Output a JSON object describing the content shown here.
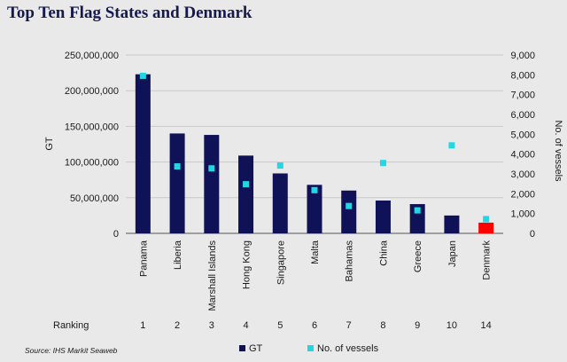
{
  "title": "Top Ten Flag States and Denmark",
  "source": "Source: IHS Markit Seaweb",
  "ranking_label": "Ranking",
  "colors": {
    "bar": "#0f1257",
    "highlight_bar": "#ff0000",
    "marker": "#22d6e4",
    "grid": "#c9c9cc",
    "text": "#1a1a1a"
  },
  "chart_data": {
    "type": "bar",
    "categories": [
      "Panama",
      "Liberia",
      "Marshall Islands",
      "Hong Kong",
      "Singapore",
      "Malta",
      "Bahamas",
      "China",
      "Greece",
      "Japan",
      "Denmark"
    ],
    "rankings": [
      "1",
      "2",
      "3",
      "4",
      "5",
      "6",
      "7",
      "8",
      "9",
      "10",
      "14"
    ],
    "highlight_category": "Denmark",
    "series": [
      {
        "name": "GT",
        "type": "bar",
        "axis": "left",
        "values": [
          223000000,
          140000000,
          138000000,
          109000000,
          84000000,
          68000000,
          60000000,
          46000000,
          41000000,
          25000000,
          15000000
        ]
      },
      {
        "name": "No. of vessels",
        "type": "scatter",
        "axis": "right",
        "values": [
          7950,
          3380,
          3280,
          2480,
          3420,
          2180,
          1380,
          3550,
          1160,
          4440,
          720
        ]
      }
    ],
    "ylabel": "GT",
    "ylabel_right": "No. of vessels",
    "ylim": [
      0,
      250000000
    ],
    "ylim_right": [
      0,
      9000
    ],
    "yticks": [
      0,
      50000000,
      100000000,
      150000000,
      200000000,
      250000000
    ],
    "yticks_labels": [
      "0",
      "50,000,000",
      "100,000,000",
      "150,000,000",
      "200,000,000",
      "250,000,000"
    ],
    "yticks_right": [
      0,
      1000,
      2000,
      3000,
      4000,
      5000,
      6000,
      7000,
      8000,
      9000
    ],
    "yticks_right_labels": [
      "0",
      "1,000",
      "2,000",
      "3,000",
      "4,000",
      "5,000",
      "6,000",
      "7,000",
      "8,000",
      "9,000"
    ],
    "grid": true,
    "legend": "bottom"
  }
}
